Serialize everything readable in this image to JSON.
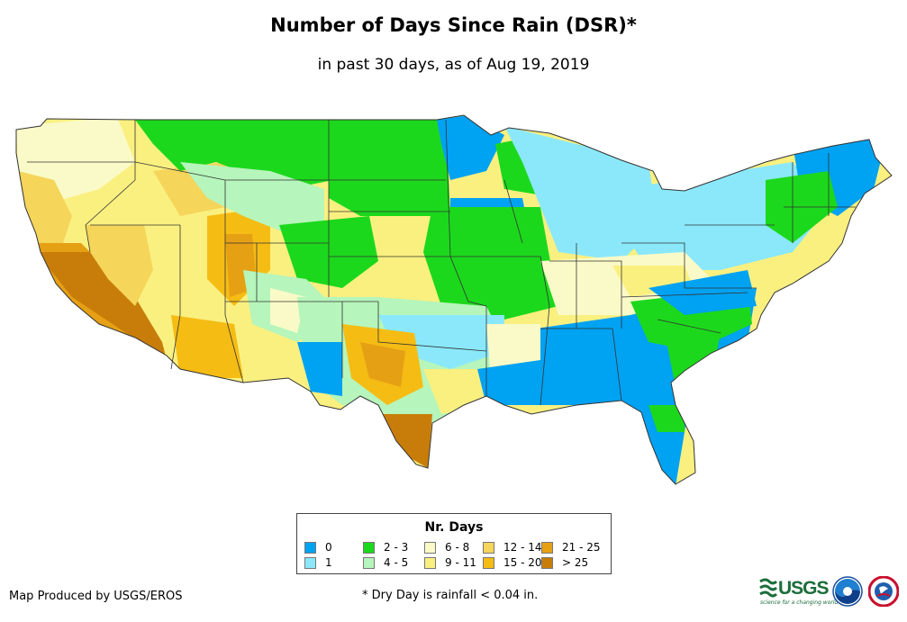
{
  "title": "Number of Days Since Rain (DSR)*",
  "subtitle": "in past 30 days, as of Aug 19, 2019",
  "legend": {
    "title": "Nr. Days",
    "items": [
      {
        "label": "0",
        "color": "#00a2f2"
      },
      {
        "label": "1",
        "color": "#8ae8fa"
      },
      {
        "label": "2 - 3",
        "color": "#1cd81c"
      },
      {
        "label": "4 - 5",
        "color": "#b6f5bb"
      },
      {
        "label": "6 - 8",
        "color": "#fafac8"
      },
      {
        "label": "9 - 11",
        "color": "#faf080"
      },
      {
        "label": "12 - 14",
        "color": "#f5d55a"
      },
      {
        "label": "15 - 20",
        "color": "#f5bc14"
      },
      {
        "label": "21 - 25",
        "color": "#e6a014"
      },
      {
        "label": "> 25",
        "color": "#c87d0a"
      }
    ]
  },
  "credit": "Map Produced by USGS/EROS",
  "footnote": "* Dry Day is rainfall < 0.04 in.",
  "logos": {
    "usgs": "USGS",
    "usgs_tagline": "science for a changing world",
    "noaa": "noaa-logo",
    "nws": "national-weather-service-logo"
  }
}
